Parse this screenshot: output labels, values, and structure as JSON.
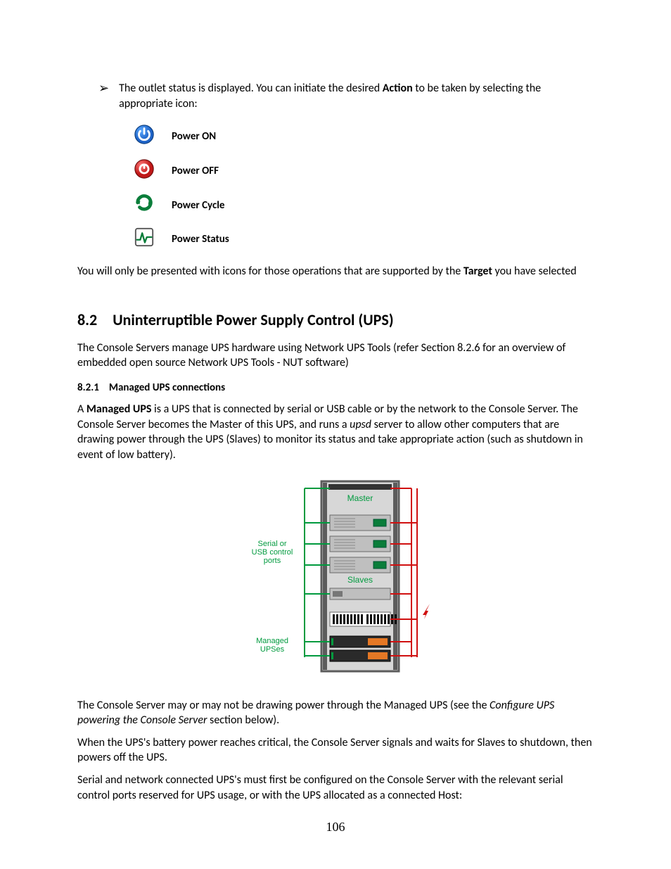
{
  "bullet": {
    "glyph": "➢",
    "text_before": "The outlet status is displayed. You can initiate the desired ",
    "action_word": "Action",
    "text_after": " to be taken by selecting the appropriate icon:"
  },
  "icon_actions": [
    {
      "name": "power-on-icon",
      "label": "Power ON",
      "svg_kind": "power_on",
      "colors": {
        "fill": "#1f64c8",
        "accent": "#ffffff",
        "border": "#083a7a"
      }
    },
    {
      "name": "power-off-icon",
      "label": "Power OFF",
      "svg_kind": "power_off",
      "colors": {
        "fill": "#c01818",
        "accent": "#ffffff",
        "border": "#6a0b0b"
      }
    },
    {
      "name": "power-cycle-icon",
      "label": "Power Cycle",
      "svg_kind": "power_cycle",
      "colors": {
        "fill": "#0a7d3a",
        "accent": "#ffffff",
        "border": "#064f24"
      }
    },
    {
      "name": "power-status-icon",
      "label": "Power Status",
      "svg_kind": "power_status",
      "colors": {
        "fill": "#ffffff",
        "accent": "#0a7d3a",
        "border": "#555555"
      }
    }
  ],
  "after_icons": {
    "before": "You will only be presented with icons for those operations that are supported by the ",
    "bold": "Target",
    "after": " you have selected"
  },
  "section": {
    "number": "8.2",
    "title": "Uninterruptible Power Supply Control (UPS)"
  },
  "section_intro": "The Console Servers manage UPS hardware using Network UPS Tools (refer Section 8.2.6 for an overview of embedded open source Network UPS Tools - NUT software)",
  "subsection": {
    "number": "8.2.1",
    "title": "Managed UPS connections"
  },
  "managed_para": {
    "p1_a": "A ",
    "p1_bold": "Managed UPS",
    "p1_b": " is a UPS that is connected by serial or USB cable or by the network to the Console Server. The Console Server becomes the Master of this UPS, and runs a ",
    "p1_italic": "upsd",
    "p1_c": " server to allow other computers that are drawing power through the UPS (Slaves) to monitor its status and take appropriate action (such as shutdown in event of low battery)."
  },
  "diagram": {
    "left_label_top": "Serial or\nUSB control\nports",
    "left_label_bottom": "Managed\nUPSes",
    "master_label": "Master",
    "slaves_label": "Slaves",
    "colors": {
      "green": "#009a3e",
      "red": "#d01010",
      "rack_frame": "#5c5c5c",
      "rack_fill": "#d7d7d7",
      "device_fill": "#bfbfbf",
      "device_border": "#6a6a6a",
      "ups_panel": "#e57825",
      "vent": "#111111",
      "label_text": "#009a3e"
    }
  },
  "para2": {
    "a": "The Console Server may or may not be drawing power through the Managed UPS (see the ",
    "italic": "Configure UPS powering the Console Server",
    "b": " section below)."
  },
  "para3": "When the UPS's battery power reaches critical, the Console Server signals and waits for Slaves to shutdown, then powers off the UPS.",
  "para4": "Serial and network connected UPS's must first be configured on the Console Server with the relevant serial control ports reserved for UPS usage, or with the UPS allocated as a connected Host:",
  "page_number": "106",
  "typography": {
    "body_fontsize_pt": 12,
    "h2_fontsize_pt": 17,
    "h3_fontsize_pt": 11,
    "pagenum_font": "Times New Roman"
  }
}
